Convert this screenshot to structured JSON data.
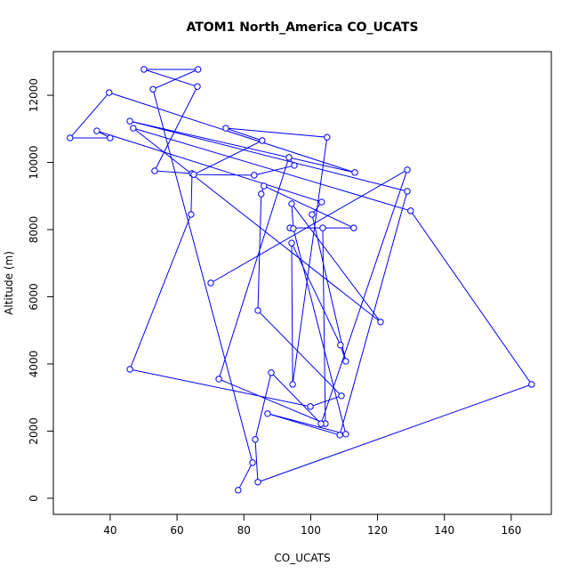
{
  "chart_data": {
    "type": "line",
    "title": "ATOM1 North_America CO_UCATS",
    "x_label": "CO_UCATS",
    "y_label": "Altitude (m)",
    "color": "#0000ff",
    "markers": true,
    "x": [
      78.3,
      82.6,
      52.8,
      66.3,
      50.1,
      66.1,
      53.3,
      64.5,
      64.2,
      45.9,
      99.9,
      109.2,
      84.2,
      85.2,
      86.0,
      112.9,
      93.8,
      103.6,
      104.4,
      72.5,
      93.5,
      95.1,
      83.1,
      65.0,
      85.5,
      74.6,
      104.9,
      94.6,
      94.3,
      108.9,
      110.5,
      100.4,
      103.3,
      36.0,
      40.0,
      28.0,
      39.7,
      113.2,
      45.9,
      128.9,
      108.7,
      87.1,
      110.5,
      94.8,
      94.3,
      120.9,
      46.9,
      129.9,
      166.1,
      84.2,
      83.4,
      88.2,
      103.1,
      128.9,
      70.1
    ],
    "values": [
      240,
      1060,
      12180,
      12770,
      12770,
      12260,
      9750,
      9670,
      8450,
      3840,
      2730,
      3050,
      5590,
      9060,
      9300,
      8050,
      8050,
      8050,
      2220,
      3550,
      10150,
      9910,
      9620,
      9640,
      10650,
      11020,
      10750,
      3390,
      7600,
      4560,
      4080,
      8450,
      8820,
      10940,
      10730,
      10730,
      12080,
      9700,
      11230,
      9140,
      1880,
      2520,
      1910,
      8030,
      8770,
      5250,
      11020,
      8560,
      3390,
      480,
      1750,
      3740,
      2220,
      9780,
      6410
    ],
    "xlim": [
      23,
      172
    ],
    "ylim": [
      -480,
      13300
    ],
    "xticks": [
      40,
      60,
      80,
      100,
      120,
      140,
      160
    ],
    "yticks": [
      0,
      2000,
      4000,
      6000,
      8000,
      10000,
      12000
    ]
  }
}
